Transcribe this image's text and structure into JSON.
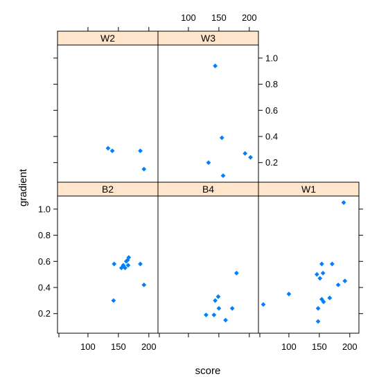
{
  "chart_data": {
    "type": "scatter",
    "layout": "lattice",
    "xlabel": "score",
    "ylabel": "gradient",
    "xlim": [
      50,
      215
    ],
    "ylim": [
      0.05,
      1.1
    ],
    "xticks": [
      100,
      150,
      200
    ],
    "yticks": [
      0.2,
      0.4,
      0.6,
      0.8,
      1.0
    ],
    "strip_color": "#FFE5CC",
    "point_color": "#0080FF",
    "panels": [
      {
        "name": "W2",
        "row": 0,
        "col": 0,
        "points": [
          [
            133,
            0.31
          ],
          [
            140,
            0.29
          ],
          [
            186,
            0.29
          ],
          [
            192,
            0.15
          ]
        ]
      },
      {
        "name": "W3",
        "row": 0,
        "col": 1,
        "points": [
          [
            144,
            0.94
          ],
          [
            133,
            0.2
          ],
          [
            155,
            0.39
          ],
          [
            157,
            0.1
          ],
          [
            193,
            0.27
          ],
          [
            202,
            0.24
          ]
        ]
      },
      {
        "name": "B2",
        "row": 1,
        "col": 0,
        "points": [
          [
            143,
            0.58
          ],
          [
            142,
            0.3
          ],
          [
            155,
            0.55
          ],
          [
            158,
            0.57
          ],
          [
            161,
            0.55
          ],
          [
            163,
            0.6
          ],
          [
            165,
            0.61
          ],
          [
            167,
            0.63
          ],
          [
            166,
            0.57
          ],
          [
            186,
            0.58
          ],
          [
            192,
            0.42
          ]
        ]
      },
      {
        "name": "B4",
        "row": 1,
        "col": 1,
        "points": [
          [
            129,
            0.19
          ],
          [
            142,
            0.19
          ],
          [
            144,
            0.3
          ],
          [
            149,
            0.33
          ],
          [
            150,
            0.24
          ],
          [
            161,
            0.15
          ],
          [
            172,
            0.24
          ],
          [
            179,
            0.51
          ]
        ]
      },
      {
        "name": "W1",
        "row": 1,
        "col": 2,
        "points": [
          [
            58,
            0.27
          ],
          [
            100,
            0.35
          ],
          [
            146,
            0.5
          ],
          [
            148,
            0.24
          ],
          [
            148,
            0.14
          ],
          [
            151,
            0.47
          ],
          [
            154,
            0.58
          ],
          [
            154,
            0.31
          ],
          [
            156,
            0.51
          ],
          [
            157,
            0.29
          ],
          [
            167,
            0.32
          ],
          [
            171,
            0.58
          ],
          [
            181,
            0.42
          ],
          [
            190,
            1.05
          ],
          [
            192,
            0.45
          ]
        ]
      }
    ]
  }
}
